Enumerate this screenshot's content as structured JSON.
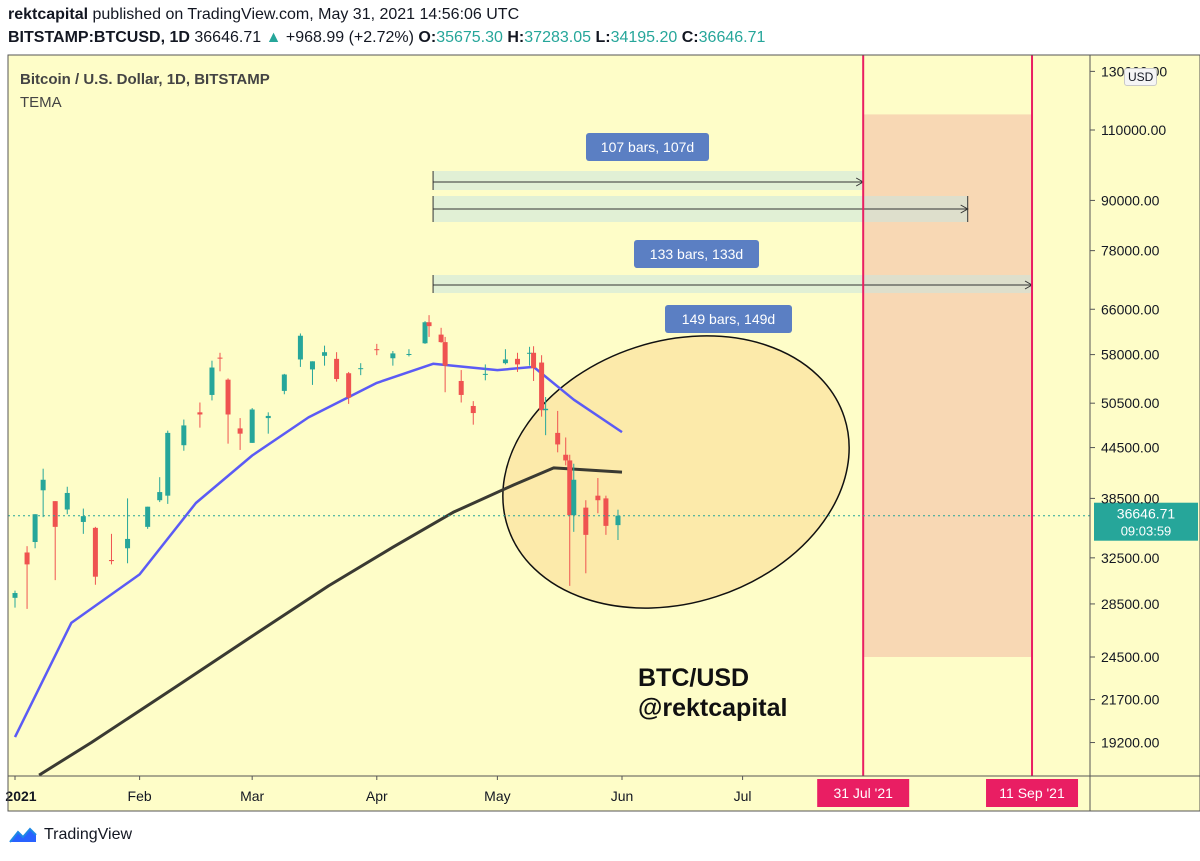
{
  "header": {
    "publisher": "rektcapital",
    "published_text": "published on TradingView.com, May 31, 2021 14:56:06 UTC",
    "symbol": "BITSTAMP:BTCUSD, 1D",
    "last": "36646.71",
    "change": "+968.99 (+2.72%)",
    "open_label": "O:",
    "open": "35675.30",
    "high_label": "H:",
    "high": "37283.05",
    "low_label": "L:",
    "low": "34195.20",
    "close_label": "C:",
    "close": "36646.71"
  },
  "chart_title": "Bitcoin / U.S. Dollar, 1D, BITSTAMP",
  "indicator_label": "TEMA",
  "currency_pill": "USD",
  "brand": "TradingView",
  "watermark": {
    "line1": "BTC/USD",
    "line2": "@rektcapital"
  },
  "price_badge": {
    "price": "36646.71",
    "countdown": "09:03:59"
  },
  "colors": {
    "background": "#fefdc8",
    "candle_up": "#26a69a",
    "candle_down": "#ef5350",
    "tema_fast": "#5b5bf5",
    "tema_slow": "#3a3a32",
    "vline": "#e91e63",
    "zone": "#f8d8b4",
    "measure_label": "#5b7fc3",
    "ellipse_fill": "#fbe3a0",
    "price_badge": "#26a69a"
  },
  "chart_data": {
    "type": "candlestick",
    "title": "Bitcoin / U.S. Dollar, 1D, BITSTAMP",
    "y_axis_ticks": [
      "130000.00",
      "110000.00",
      "90000.00",
      "78000.00",
      "66000.00",
      "58000.00",
      "50500.00",
      "44500.00",
      "38500.00",
      "32500.00",
      "28500.00",
      "24500.00",
      "21700.00",
      "19200.00"
    ],
    "y_axis_scale": "log",
    "x_axis_ticks": [
      "2021",
      "Feb",
      "Mar",
      "Apr",
      "May",
      "Jun",
      "Jul"
    ],
    "x_date_range": [
      "2021-01-01",
      "2021-09-30"
    ],
    "last_close": 36646.71,
    "candles_approx": [
      {
        "date": "2021-01-01",
        "open": 29000,
        "high": 29600,
        "low": 28200,
        "close": 29400
      },
      {
        "date": "2021-01-04",
        "open": 33000,
        "high": 33600,
        "low": 28100,
        "close": 31900
      },
      {
        "date": "2021-01-06",
        "open": 34000,
        "high": 36800,
        "low": 33400,
        "close": 36800
      },
      {
        "date": "2021-01-08",
        "open": 39400,
        "high": 41900,
        "low": 36500,
        "close": 40600
      },
      {
        "date": "2021-01-11",
        "open": 38200,
        "high": 38200,
        "low": 30500,
        "close": 35500
      },
      {
        "date": "2021-01-14",
        "open": 37300,
        "high": 39800,
        "low": 36800,
        "close": 39100
      },
      {
        "date": "2021-01-18",
        "open": 36000,
        "high": 37400,
        "low": 34800,
        "close": 36600
      },
      {
        "date": "2021-01-21",
        "open": 35400,
        "high": 35500,
        "low": 30100,
        "close": 30800
      },
      {
        "date": "2021-01-25",
        "open": 32300,
        "high": 34800,
        "low": 31900,
        "close": 32200
      },
      {
        "date": "2021-01-29",
        "open": 33400,
        "high": 38500,
        "low": 32000,
        "close": 34300
      },
      {
        "date": "2021-02-03",
        "open": 35500,
        "high": 37600,
        "low": 35300,
        "close": 37600
      },
      {
        "date": "2021-02-06",
        "open": 38300,
        "high": 40900,
        "low": 38100,
        "close": 39200
      },
      {
        "date": "2021-02-08",
        "open": 38800,
        "high": 46700,
        "low": 37900,
        "close": 46400
      },
      {
        "date": "2021-02-12",
        "open": 44800,
        "high": 48200,
        "low": 44100,
        "close": 47400
      },
      {
        "date": "2021-02-16",
        "open": 49200,
        "high": 50600,
        "low": 47100,
        "close": 48900
      },
      {
        "date": "2021-02-19",
        "open": 51700,
        "high": 57000,
        "low": 50900,
        "close": 55900
      },
      {
        "date": "2021-02-21",
        "open": 57500,
        "high": 58300,
        "low": 55300,
        "close": 57400
      },
      {
        "date": "2021-02-23",
        "open": 54000,
        "high": 54200,
        "low": 45000,
        "close": 48900
      },
      {
        "date": "2021-02-26",
        "open": 47000,
        "high": 48400,
        "low": 44200,
        "close": 46300
      },
      {
        "date": "2021-03-01",
        "open": 45100,
        "high": 49800,
        "low": 45100,
        "close": 49600
      },
      {
        "date": "2021-03-05",
        "open": 48400,
        "high": 49200,
        "low": 46300,
        "close": 48700
      },
      {
        "date": "2021-03-09",
        "open": 52300,
        "high": 54900,
        "low": 51800,
        "close": 54800
      },
      {
        "date": "2021-03-13",
        "open": 57200,
        "high": 61600,
        "low": 56000,
        "close": 61200
      },
      {
        "date": "2021-03-16",
        "open": 55600,
        "high": 56900,
        "low": 53200,
        "close": 56900
      },
      {
        "date": "2021-03-19",
        "open": 57800,
        "high": 59500,
        "low": 56200,
        "close": 58400
      },
      {
        "date": "2021-03-22",
        "open": 57300,
        "high": 58400,
        "low": 53700,
        "close": 54100
      },
      {
        "date": "2021-03-25",
        "open": 55000,
        "high": 55200,
        "low": 50400,
        "close": 51300
      },
      {
        "date": "2021-03-28",
        "open": 55800,
        "high": 56600,
        "low": 54700,
        "close": 55800
      },
      {
        "date": "2021-04-01",
        "open": 58900,
        "high": 59800,
        "low": 57900,
        "close": 58800
      },
      {
        "date": "2021-04-05",
        "open": 57400,
        "high": 58600,
        "low": 56200,
        "close": 58200
      },
      {
        "date": "2021-04-09",
        "open": 58000,
        "high": 58900,
        "low": 57700,
        "close": 58100
      },
      {
        "date": "2021-04-13",
        "open": 59900,
        "high": 63800,
        "low": 59800,
        "close": 63600
      },
      {
        "date": "2021-04-14",
        "open": 63600,
        "high": 64900,
        "low": 61000,
        "close": 62900
      },
      {
        "date": "2021-04-17",
        "open": 61400,
        "high": 62600,
        "low": 60000,
        "close": 60100
      },
      {
        "date": "2021-04-18",
        "open": 60100,
        "high": 61000,
        "low": 52100,
        "close": 56200
      },
      {
        "date": "2021-04-22",
        "open": 53800,
        "high": 55500,
        "low": 50600,
        "close": 51700
      },
      {
        "date": "2021-04-25",
        "open": 50100,
        "high": 50800,
        "low": 47500,
        "close": 49100
      },
      {
        "date": "2021-04-28",
        "open": 54900,
        "high": 56400,
        "low": 53900,
        "close": 54900
      },
      {
        "date": "2021-05-03",
        "open": 56600,
        "high": 58900,
        "low": 56400,
        "close": 57200
      },
      {
        "date": "2021-05-06",
        "open": 57300,
        "high": 58300,
        "low": 55200,
        "close": 56400
      },
      {
        "date": "2021-05-09",
        "open": 58300,
        "high": 59300,
        "low": 56200,
        "close": 58300
      },
      {
        "date": "2021-05-10",
        "open": 58300,
        "high": 59400,
        "low": 53800,
        "close": 55800
      },
      {
        "date": "2021-05-12",
        "open": 56700,
        "high": 57900,
        "low": 48600,
        "close": 49500
      },
      {
        "date": "2021-05-13",
        "open": 49500,
        "high": 51400,
        "low": 46100,
        "close": 49700
      },
      {
        "date": "2021-05-16",
        "open": 46400,
        "high": 49400,
        "low": 43900,
        "close": 44900
      },
      {
        "date": "2021-05-18",
        "open": 43600,
        "high": 45800,
        "low": 42300,
        "close": 42900
      },
      {
        "date": "2021-05-19",
        "open": 42900,
        "high": 43600,
        "low": 30000,
        "close": 36700
      },
      {
        "date": "2021-05-20",
        "open": 36700,
        "high": 42500,
        "low": 35000,
        "close": 40600
      },
      {
        "date": "2021-05-23",
        "open": 37500,
        "high": 38300,
        "low": 31100,
        "close": 34700
      },
      {
        "date": "2021-05-26",
        "open": 38800,
        "high": 40800,
        "low": 36900,
        "close": 38300
      },
      {
        "date": "2021-05-28",
        "open": 38500,
        "high": 38800,
        "low": 34700,
        "close": 35600
      },
      {
        "date": "2021-05-31",
        "open": 35675.3,
        "high": 37283.05,
        "low": 34195.2,
        "close": 36646.71
      }
    ],
    "series": [
      {
        "name": "TEMA",
        "color": "#5b5bf5",
        "points": [
          [
            "2021-01-01",
            19500
          ],
          [
            "2021-01-15",
            27000
          ],
          [
            "2021-02-01",
            31000
          ],
          [
            "2021-02-15",
            38000
          ],
          [
            "2021-03-01",
            43500
          ],
          [
            "2021-03-15",
            48500
          ],
          [
            "2021-04-01",
            53500
          ],
          [
            "2021-04-15",
            56500
          ],
          [
            "2021-05-01",
            55500
          ],
          [
            "2021-05-10",
            56000
          ],
          [
            "2021-05-20",
            51000
          ],
          [
            "2021-06-01",
            46500
          ]
        ]
      },
      {
        "name": "TEMA",
        "color": "#3a3a32",
        "points": [
          [
            "2021-01-07",
            17500
          ],
          [
            "2021-01-20",
            19200
          ],
          [
            "2021-02-10",
            22500
          ],
          [
            "2021-03-01",
            26000
          ],
          [
            "2021-03-20",
            30000
          ],
          [
            "2021-04-05",
            33500
          ],
          [
            "2021-04-20",
            37000
          ],
          [
            "2021-05-05",
            40000
          ],
          [
            "2021-05-15",
            42000
          ],
          [
            "2021-06-01",
            41500
          ]
        ]
      }
    ],
    "annotations": [
      {
        "kind": "date-range",
        "label": "107 bars, 107d",
        "from": "2021-04-15",
        "to": "2021-07-31"
      },
      {
        "kind": "date-range",
        "label": "133 bars, 133d",
        "from": "2021-04-15",
        "to": "2021-08-26"
      },
      {
        "kind": "date-range",
        "label": "149 bars, 149d",
        "from": "2021-04-15",
        "to": "2021-09-11"
      },
      {
        "kind": "vertical-line",
        "label": "31 Jul '21",
        "date": "2021-07-31"
      },
      {
        "kind": "vertical-line",
        "label": "11 Sep '21",
        "date": "2021-09-11"
      },
      {
        "kind": "shaded-zone",
        "from": "2021-07-31",
        "to": "2021-09-11",
        "price_low": 24500,
        "price_high": 115000
      }
    ]
  }
}
